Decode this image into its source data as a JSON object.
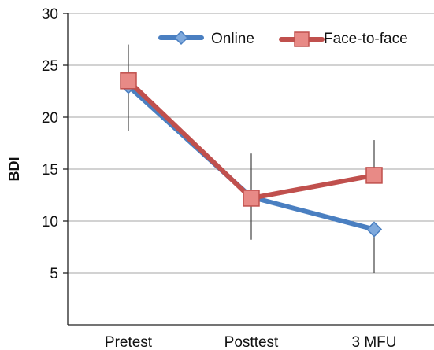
{
  "chart_data": {
    "type": "line",
    "title": "",
    "xlabel": "",
    "ylabel": "BDI",
    "ylim": [
      0,
      30
    ],
    "yticks": [
      5,
      10,
      15,
      20,
      25,
      30
    ],
    "categories": [
      "Pretest",
      "Posttest",
      "3 MFU"
    ],
    "grid": true,
    "legend_position": "top-right",
    "series": [
      {
        "name": "Online",
        "color": "#4a7fc1",
        "marker": "diamond",
        "values": [
          23.0,
          12.3,
          9.2
        ],
        "error_low": [
          null,
          null,
          5.0
        ],
        "error_high": [
          null,
          null,
          null
        ]
      },
      {
        "name": "Face-to-face",
        "color": "#c0504d",
        "marker": "square",
        "values": [
          23.5,
          12.2,
          14.4
        ],
        "error_low": [
          18.7,
          8.2,
          null
        ],
        "error_high": [
          27.0,
          16.5,
          17.8
        ]
      }
    ]
  }
}
